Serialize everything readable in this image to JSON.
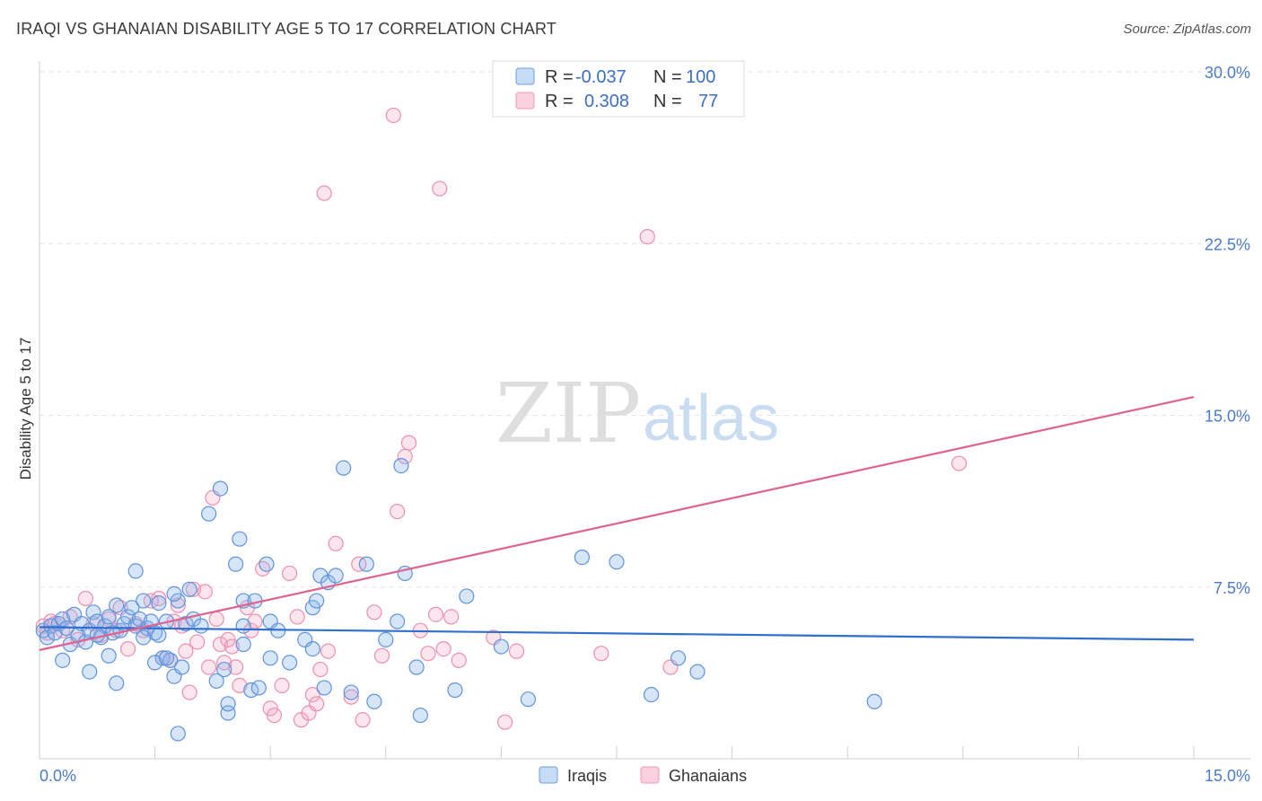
{
  "title": "IRAQI VS GHANAIAN DISABILITY AGE 5 TO 17 CORRELATION CHART",
  "source": "Source: ZipAtlas.com",
  "watermark": {
    "zip": "ZIP",
    "atlas": "atlas"
  },
  "legend_top": [
    {
      "r_label": "R =",
      "r_value": "-0.037",
      "n_label": "N =",
      "n_value": "100",
      "color": "#6f9fe0"
    },
    {
      "r_label": "R =",
      "r_value": "0.308",
      "n_label": "N =",
      "n_value": "77",
      "color": "#f09ab8"
    }
  ],
  "legend_bottom": [
    {
      "label": "Iraqis",
      "color": "#6f9fe0"
    },
    {
      "label": "Ghanaians",
      "color": "#f09ab8"
    }
  ],
  "chart_data": {
    "type": "scatter",
    "title": "IRAQI VS GHANAIAN DISABILITY AGE 5 TO 17 CORRELATION CHART",
    "xlabel": "",
    "ylabel": "Disability Age 5 to 17",
    "xlim": [
      0,
      15
    ],
    "ylim": [
      0,
      30
    ],
    "x_tick_labels": [
      "0.0%",
      "15.0%"
    ],
    "y_ticks": [
      7.5,
      15.0,
      22.5,
      30.0
    ],
    "y_tick_labels": [
      "7.5%",
      "15.0%",
      "22.5%",
      "30.0%"
    ],
    "grid": "horizontal dashed",
    "series": [
      {
        "name": "Iraqis",
        "color": "#6f9fe0",
        "trend": {
          "x": [
            0,
            15
          ],
          "y": [
            5.75,
            5.2
          ]
        },
        "points": [
          [
            0.05,
            5.6
          ],
          [
            0.1,
            5.3
          ],
          [
            0.15,
            5.8
          ],
          [
            0.2,
            5.5
          ],
          [
            0.25,
            5.9
          ],
          [
            0.3,
            6.1
          ],
          [
            0.35,
            5.7
          ],
          [
            0.4,
            5.0
          ],
          [
            0.45,
            6.3
          ],
          [
            0.5,
            5.4
          ],
          [
            0.55,
            5.9
          ],
          [
            0.6,
            5.1
          ],
          [
            0.65,
            5.6
          ],
          [
            0.7,
            6.4
          ],
          [
            0.75,
            6.0
          ],
          [
            0.8,
            5.3
          ],
          [
            0.85,
            5.8
          ],
          [
            0.9,
            6.2
          ],
          [
            0.95,
            5.5
          ],
          [
            1.0,
            6.7
          ],
          [
            1.05,
            5.6
          ],
          [
            1.1,
            5.9
          ],
          [
            1.15,
            6.2
          ],
          [
            1.2,
            6.6
          ],
          [
            1.25,
            5.8
          ],
          [
            1.3,
            6.1
          ],
          [
            1.35,
            6.9
          ],
          [
            1.4,
            5.7
          ],
          [
            1.45,
            6.0
          ],
          [
            1.5,
            5.5
          ],
          [
            1.55,
            6.8
          ],
          [
            1.6,
            4.4
          ],
          [
            1.65,
            6.0
          ],
          [
            1.7,
            4.3
          ],
          [
            1.75,
            3.6
          ],
          [
            1.8,
            6.9
          ],
          [
            1.85,
            4.0
          ],
          [
            1.9,
            5.9
          ],
          [
            1.95,
            7.4
          ],
          [
            2.0,
            6.1
          ],
          [
            0.3,
            4.3
          ],
          [
            0.65,
            3.8
          ],
          [
            0.75,
            5.4
          ],
          [
            0.9,
            4.5
          ],
          [
            1.0,
            3.3
          ],
          [
            1.25,
            8.2
          ],
          [
            1.35,
            5.3
          ],
          [
            1.5,
            4.2
          ],
          [
            1.55,
            5.4
          ],
          [
            1.65,
            4.4
          ],
          [
            1.75,
            7.2
          ],
          [
            1.8,
            1.1
          ],
          [
            2.1,
            5.8
          ],
          [
            2.2,
            10.7
          ],
          [
            2.35,
            11.8
          ],
          [
            2.3,
            3.4
          ],
          [
            2.4,
            3.9
          ],
          [
            2.45,
            2.0
          ],
          [
            2.45,
            2.4
          ],
          [
            2.55,
            8.5
          ],
          [
            2.6,
            9.6
          ],
          [
            2.65,
            5.8
          ],
          [
            2.65,
            6.9
          ],
          [
            2.75,
            3.0
          ],
          [
            2.8,
            6.9
          ],
          [
            2.85,
            3.1
          ],
          [
            2.95,
            8.5
          ],
          [
            3.0,
            6.0
          ],
          [
            3.1,
            5.6
          ],
          [
            3.25,
            4.2
          ],
          [
            2.65,
            5.0
          ],
          [
            3.0,
            4.4
          ],
          [
            3.45,
            5.2
          ],
          [
            3.55,
            4.8
          ],
          [
            3.55,
            6.6
          ],
          [
            3.6,
            6.9
          ],
          [
            3.65,
            8.0
          ],
          [
            3.7,
            3.1
          ],
          [
            3.75,
            7.7
          ],
          [
            3.85,
            8.0
          ],
          [
            3.95,
            12.7
          ],
          [
            4.05,
            2.9
          ],
          [
            4.25,
            8.5
          ],
          [
            4.35,
            2.5
          ],
          [
            4.5,
            5.2
          ],
          [
            4.65,
            6.0
          ],
          [
            4.7,
            12.8
          ],
          [
            4.75,
            8.1
          ],
          [
            4.9,
            4.0
          ],
          [
            4.95,
            1.9
          ],
          [
            5.4,
            3.0
          ],
          [
            5.55,
            7.1
          ],
          [
            6.0,
            4.9
          ],
          [
            6.35,
            2.6
          ],
          [
            7.05,
            8.8
          ],
          [
            7.5,
            8.6
          ],
          [
            7.95,
            2.8
          ],
          [
            8.3,
            4.4
          ],
          [
            8.55,
            3.8
          ],
          [
            10.85,
            2.5
          ]
        ]
      },
      {
        "name": "Ghanaians",
        "color": "#f09ab8",
        "trend": {
          "x": [
            0,
            15
          ],
          "y": [
            4.75,
            15.8
          ]
        },
        "points": [
          [
            0.05,
            5.8
          ],
          [
            0.1,
            5.5
          ],
          [
            0.15,
            6.0
          ],
          [
            0.2,
            5.9
          ],
          [
            0.3,
            5.6
          ],
          [
            0.4,
            6.2
          ],
          [
            0.5,
            5.2
          ],
          [
            0.6,
            7.0
          ],
          [
            0.7,
            5.9
          ],
          [
            0.8,
            5.4
          ],
          [
            0.9,
            6.1
          ],
          [
            1.0,
            5.6
          ],
          [
            1.05,
            6.6
          ],
          [
            1.15,
            4.8
          ],
          [
            1.25,
            5.9
          ],
          [
            1.35,
            5.6
          ],
          [
            1.45,
            6.9
          ],
          [
            1.55,
            7.0
          ],
          [
            1.6,
            4.4
          ],
          [
            1.7,
            4.3
          ],
          [
            1.75,
            6.0
          ],
          [
            1.8,
            6.7
          ],
          [
            1.85,
            5.8
          ],
          [
            1.9,
            4.7
          ],
          [
            1.95,
            2.9
          ],
          [
            2.0,
            7.4
          ],
          [
            2.05,
            5.1
          ],
          [
            2.15,
            7.3
          ],
          [
            2.2,
            4.0
          ],
          [
            2.25,
            11.4
          ],
          [
            2.3,
            6.1
          ],
          [
            2.35,
            5.0
          ],
          [
            2.4,
            4.2
          ],
          [
            2.45,
            5.2
          ],
          [
            2.5,
            4.9
          ],
          [
            2.55,
            4.0
          ],
          [
            2.6,
            3.2
          ],
          [
            2.7,
            6.6
          ],
          [
            2.75,
            5.6
          ],
          [
            2.8,
            6.0
          ],
          [
            2.9,
            8.3
          ],
          [
            3.0,
            2.2
          ],
          [
            3.05,
            1.9
          ],
          [
            3.15,
            3.2
          ],
          [
            3.25,
            8.1
          ],
          [
            3.35,
            6.2
          ],
          [
            3.4,
            1.7
          ],
          [
            3.5,
            2.0
          ],
          [
            3.55,
            2.8
          ],
          [
            3.6,
            2.4
          ],
          [
            3.65,
            3.9
          ],
          [
            3.7,
            24.7
          ],
          [
            3.75,
            4.7
          ],
          [
            3.85,
            9.4
          ],
          [
            4.05,
            2.7
          ],
          [
            4.15,
            8.5
          ],
          [
            4.2,
            1.7
          ],
          [
            4.35,
            6.4
          ],
          [
            4.45,
            4.5
          ],
          [
            4.6,
            28.1
          ],
          [
            4.65,
            10.8
          ],
          [
            4.75,
            13.2
          ],
          [
            4.8,
            13.8
          ],
          [
            4.95,
            5.6
          ],
          [
            5.05,
            4.6
          ],
          [
            5.15,
            6.3
          ],
          [
            5.2,
            24.9
          ],
          [
            5.25,
            4.8
          ],
          [
            5.35,
            6.2
          ],
          [
            5.45,
            4.3
          ],
          [
            5.9,
            5.3
          ],
          [
            6.05,
            1.6
          ],
          [
            6.2,
            4.7
          ],
          [
            7.3,
            4.6
          ],
          [
            7.9,
            22.8
          ],
          [
            8.2,
            4.0
          ],
          [
            11.95,
            12.9
          ]
        ]
      }
    ]
  }
}
